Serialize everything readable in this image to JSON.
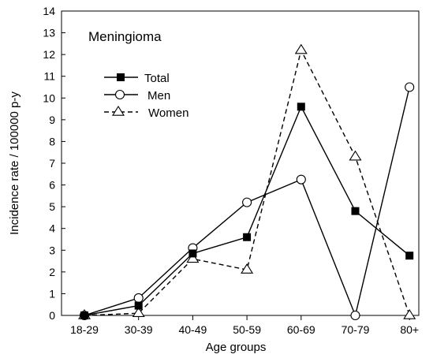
{
  "chart_data": {
    "type": "line",
    "title": "Meningioma",
    "xlabel": "Age groups",
    "ylabel": "Incidence rate / 100000 p-y",
    "categories": [
      "18-29",
      "30-39",
      "40-49",
      "50-59",
      "60-69",
      "70-79",
      "80+"
    ],
    "ylim": [
      0,
      14
    ],
    "yticks": [
      "0",
      "1",
      "2",
      "3",
      "4",
      "5",
      "6",
      "7",
      "8",
      "9",
      "10",
      "11",
      "12",
      "13",
      "14"
    ],
    "grid": false,
    "legend_position": "upper-left",
    "series": [
      {
        "name": "Total",
        "marker": "filled-square",
        "line": "solid",
        "color": "#000000",
        "values": [
          0.0,
          0.45,
          2.85,
          3.6,
          9.6,
          4.8,
          2.75
        ]
      },
      {
        "name": "Men",
        "marker": "open-circle",
        "line": "solid",
        "color": "#000000",
        "values": [
          0.0,
          0.8,
          3.1,
          5.2,
          6.25,
          0.0,
          10.5
        ]
      },
      {
        "name": "Women",
        "marker": "open-triangle",
        "line": "dashed",
        "color": "#000000",
        "values": [
          0.0,
          0.1,
          2.6,
          2.1,
          12.2,
          7.3,
          0.0
        ]
      }
    ]
  }
}
